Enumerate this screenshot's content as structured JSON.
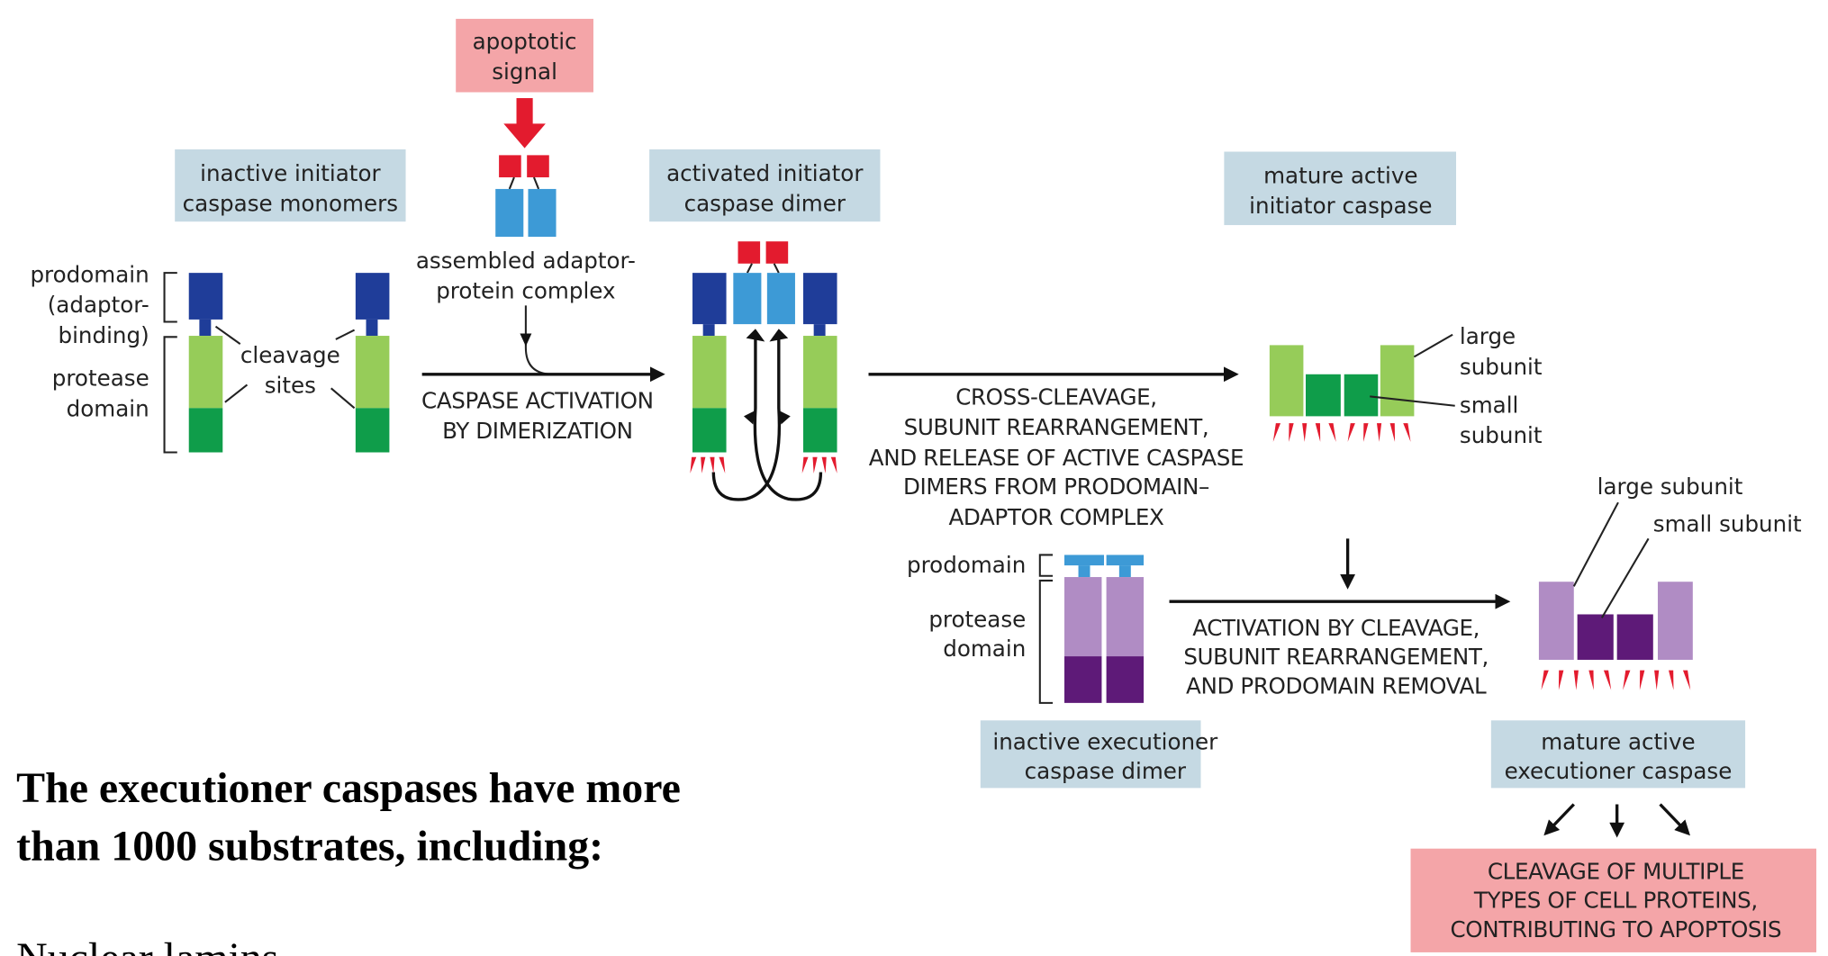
{
  "colors": {
    "label_box": "#c5d9e3",
    "signal_box": "#f4a5a8",
    "red": "#e31b2e",
    "adaptor_blue": "#3d9ad6",
    "prodomain_dark_blue": "#1f3d99",
    "light_green": "#96cc59",
    "dark_green": "#0f9d4a",
    "light_purple": "#b08cc4",
    "dark_purple": "#5e1a78"
  },
  "signal": {
    "line1": "apoptotic",
    "line2": "signal"
  },
  "adaptor_label": {
    "line1": "assembled adaptor-",
    "line2": "protein complex"
  },
  "boxes": {
    "inactive_initiator": {
      "line1": "inactive initiator",
      "line2": "caspase monomers"
    },
    "activated_initiator": {
      "line1": "activated initiator",
      "line2": "caspase dimer"
    },
    "mature_initiator": {
      "line1": "mature active",
      "line2": "initiator caspase"
    },
    "inactive_executioner": {
      "line1": "inactive executioner",
      "line2": "caspase dimer"
    },
    "mature_executioner": {
      "line1": "mature active",
      "line2": "executioner caspase"
    },
    "outcome": {
      "line1": "CLEAVAGE OF MULTIPLE",
      "line2": "TYPES OF CELL PROTEINS,",
      "line3": "CONTRIBUTING TO APOPTOSIS"
    }
  },
  "monomer_labels": {
    "prodomain1": "prodomain",
    "prodomain2": "(adaptor-",
    "prodomain3": "binding)",
    "protease1": "protease",
    "protease2": "domain",
    "cleavage1": "cleavage",
    "cleavage2": "sites"
  },
  "steps": {
    "dimerization": {
      "line1": "CASPASE ACTIVATION",
      "line2": "BY DIMERIZATION"
    },
    "cross_cleavage": {
      "line1": "CROSS-CLEAVAGE,",
      "line2": "SUBUNIT REARRANGEMENT,",
      "line3": "AND RELEASE OF ACTIVE CASPASE",
      "line4": "DIMERS FROM PRODOMAIN–",
      "line5": "ADAPTOR COMPLEX"
    },
    "executioner_activation": {
      "line1": "ACTIVATION BY CLEAVAGE,",
      "line2": "SUBUNIT REARRANGEMENT,",
      "line3": "AND PRODOMAIN REMOVAL"
    }
  },
  "initiator_subunits": {
    "large1": "large",
    "large2": "subunit",
    "small1": "small",
    "small2": "subunit"
  },
  "executioner_labels": {
    "prodomain": "prodomain",
    "protease1": "protease",
    "protease2": "domain",
    "large": "large subunit",
    "small": "small subunit"
  },
  "slide_text": {
    "heading_line1": "The executioner caspases have more",
    "heading_line2": "than 1000 substrates, including:",
    "list_item": "Nuclear lamins"
  }
}
